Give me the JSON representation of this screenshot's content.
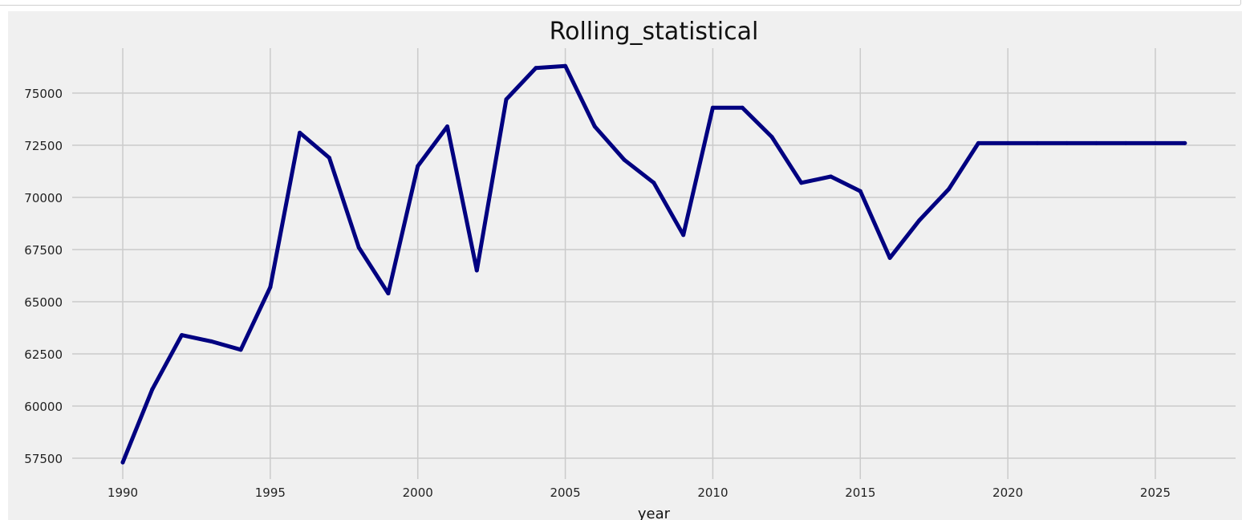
{
  "chart_data": {
    "type": "line",
    "title": "Rolling_statistical",
    "xlabel": "year",
    "ylabel": "",
    "xlim": [
      1988.3,
      1987.7
    ],
    "ylim": [
      56300,
      77400
    ],
    "xticks": [
      1990,
      1995,
      2000,
      2005,
      2010,
      2015,
      2020,
      2025
    ],
    "yticks": [
      57500,
      60000,
      62500,
      65000,
      67500,
      70000,
      72500,
      75000
    ],
    "grid": true,
    "style": "fivethirtyeight",
    "colors": {
      "line": "#000080",
      "background": "#f0f0f0",
      "grid": "#cbcbcb"
    },
    "series": [
      {
        "x": [
          1990,
          1991,
          1992,
          1993,
          1994,
          1995,
          1996,
          1997,
          1998,
          1999,
          2000,
          2001,
          2002,
          2003,
          2004,
          2005,
          2006,
          2007,
          2008,
          2009,
          2010,
          2011,
          2012,
          2013,
          2014,
          2015,
          2016,
          2017,
          2018,
          2019,
          2020,
          2021,
          2022,
          2023,
          2024,
          2025,
          2026
        ],
        "values": [
          57300,
          60800,
          63400,
          63100,
          62700,
          65700,
          73100,
          71900,
          67600,
          65400,
          71500,
          73400,
          66500,
          74700,
          76200,
          76300,
          73400,
          71800,
          70700,
          68200,
          74300,
          74300,
          72900,
          70700,
          71000,
          70300,
          67100,
          68900,
          70400,
          72600,
          72600,
          72600,
          72600,
          72600,
          72600,
          72600,
          72600
        ]
      }
    ]
  }
}
